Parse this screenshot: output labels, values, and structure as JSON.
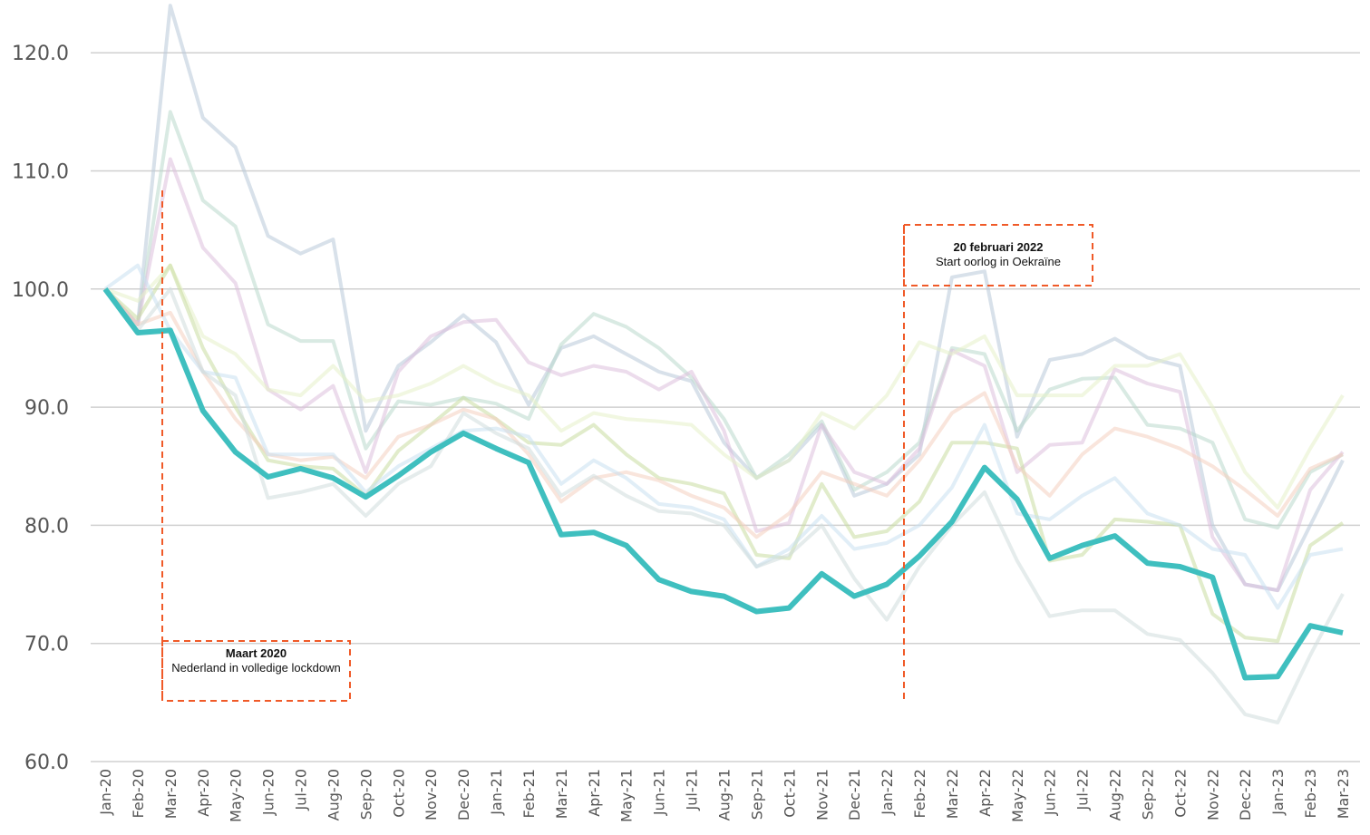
{
  "chart_data": {
    "type": "line",
    "categories": [
      "Jan-20",
      "Feb-20",
      "Mar-20",
      "Apr-20",
      "May-20",
      "Jun-20",
      "Jul-20",
      "Aug-20",
      "Sep-20",
      "Oct-20",
      "Nov-20",
      "Dec-20",
      "Jan-21",
      "Feb-21",
      "Mar-21",
      "Apr-21",
      "May-21",
      "Jun-21",
      "Jul-21",
      "Aug-21",
      "Sep-21",
      "Oct-21",
      "Nov-21",
      "Dec-21",
      "Jan-22",
      "Feb-22",
      "Mar-22",
      "Apr-22",
      "May-22",
      "Jun-22",
      "Jul-22",
      "Aug-22",
      "Sep-22",
      "Oct-22",
      "Nov-22",
      "Dec-22",
      "Jan-23",
      "Feb-23",
      "Mar-23"
    ],
    "ylim": [
      60,
      122
    ],
    "yticks": [
      {
        "value": 60,
        "label": "60.0"
      },
      {
        "value": 70,
        "label": "70.0"
      },
      {
        "value": 80,
        "label": "80.0"
      },
      {
        "value": 90,
        "label": "90.0"
      },
      {
        "value": 100,
        "label": "100.0"
      },
      {
        "value": 110,
        "label": "110.0"
      },
      {
        "value": 120,
        "label": "120.0"
      }
    ],
    "grid": true,
    "series": [
      {
        "color": "#b8c8d8",
        "values": [
          100,
          97,
          124,
          114.5,
          112,
          104.5,
          103,
          104.2,
          88,
          93.5,
          95.5,
          97.8,
          95.5,
          90.2,
          95,
          96,
          94.5,
          93,
          92.2,
          87,
          84,
          85.5,
          88.5,
          82.5,
          83.5,
          86,
          101,
          101.5,
          87.5,
          94,
          94.5,
          95.8,
          94.2,
          93.5,
          80,
          75,
          74.5,
          80,
          85.5
        ]
      },
      {
        "color": "#b9d8cc",
        "values": [
          100,
          97,
          115,
          107.5,
          105.3,
          97,
          95.6,
          95.6,
          86.5,
          90.5,
          90.2,
          90.8,
          90.3,
          89,
          95.3,
          97.9,
          96.8,
          95,
          92.5,
          89,
          84,
          86,
          88.8,
          83,
          84.5,
          87,
          95,
          94.5,
          88,
          91.5,
          92.4,
          92.5,
          88.5,
          88.2,
          87,
          80.5,
          79.8,
          84.5,
          86
        ]
      },
      {
        "color": "#dcc0dc",
        "values": [
          100,
          97,
          111,
          103.5,
          100.5,
          91.5,
          89.8,
          91.8,
          84.5,
          93,
          96,
          97.2,
          97.4,
          93.8,
          92.7,
          93.5,
          93,
          91.5,
          93,
          88,
          79.5,
          80.2,
          88.5,
          84.5,
          83.5,
          86.5,
          94.8,
          93.5,
          84.5,
          86.8,
          87,
          93.2,
          92,
          91.3,
          79,
          75,
          74.5,
          83,
          86.2
        ]
      },
      {
        "color": "#e6f0c8",
        "values": [
          100,
          99,
          102,
          96,
          94.5,
          91.5,
          91,
          93.5,
          90.5,
          91,
          92,
          93.5,
          92,
          91,
          88,
          89.5,
          89,
          88.8,
          88.5,
          86,
          84,
          85.5,
          89.5,
          88.2,
          91,
          95.5,
          94.5,
          96,
          91,
          91,
          91,
          93.5,
          93.5,
          94.5,
          90,
          84.5,
          81.5,
          86.5,
          91
        ]
      },
      {
        "color": "#c8dca0",
        "values": [
          100,
          97.5,
          102,
          95,
          90,
          85.5,
          85,
          84.8,
          82.5,
          86.3,
          88.5,
          90.8,
          89,
          87,
          86.8,
          88.5,
          86,
          84,
          83.5,
          82.7,
          77.5,
          77.2,
          83.5,
          79,
          79.5,
          82,
          87,
          87,
          86.5,
          77,
          77.5,
          80.5,
          80.3,
          80,
          72.5,
          70.5,
          70.2,
          78.3,
          80.2
        ]
      },
      {
        "color": "#f4d0c0",
        "values": [
          100,
          97,
          98,
          93,
          89,
          86,
          85.5,
          85.8,
          84,
          87.5,
          88.5,
          89.8,
          89,
          86,
          82,
          84,
          84.5,
          83.8,
          82.5,
          81.5,
          79,
          81,
          84.5,
          83.5,
          82.5,
          85.5,
          89.5,
          91.2,
          85,
          82.5,
          86,
          88.2,
          87.5,
          86.5,
          85,
          83,
          80.8,
          84.8,
          86
        ]
      },
      {
        "color": "#c8e0f0",
        "values": [
          100,
          102,
          96.5,
          93,
          92.5,
          86,
          86,
          86,
          82.8,
          85,
          86.5,
          88,
          88.2,
          87.5,
          83.5,
          85.5,
          84,
          81.8,
          81.5,
          80.5,
          76.5,
          78,
          80.8,
          78,
          78.5,
          80,
          83.2,
          88.5,
          81,
          80.5,
          82.5,
          84,
          81,
          80,
          78,
          77.5,
          73,
          77.5,
          78
        ]
      },
      {
        "color": "#d0dcdc",
        "values": [
          100,
          96.5,
          100,
          93,
          91,
          82.3,
          82.8,
          83.5,
          80.8,
          83.5,
          85,
          89.5,
          87.8,
          86.5,
          82.5,
          84.2,
          82.5,
          81.2,
          81,
          80,
          76.5,
          77.5,
          80,
          75.5,
          72,
          76.5,
          80,
          82.8,
          77,
          72.3,
          72.8,
          72.8,
          70.8,
          70.3,
          67.5,
          64,
          63.3,
          69,
          74.2
        ]
      },
      {
        "color": "#3fbfbf",
        "highlight": true,
        "values": [
          100,
          96.3,
          96.5,
          89.7,
          86.2,
          84.1,
          84.8,
          84.0,
          82.4,
          84.2,
          86.2,
          87.8,
          86.5,
          85.3,
          79.2,
          79.4,
          78.3,
          75.4,
          74.4,
          74.0,
          72.7,
          73.0,
          75.9,
          74.0,
          75.0,
          77.4,
          80.3,
          84.9,
          82.2,
          77.2,
          78.3,
          79.1,
          76.8,
          76.5,
          75.6,
          67.1,
          67.2,
          71.5,
          70.9
        ]
      }
    ],
    "annotations": [
      {
        "title": "Maart 2020",
        "text": "Nederland in volledige lockdown"
      },
      {
        "title": "20 februari 2022",
        "text": "Start oorlog in Oekraïne"
      }
    ]
  }
}
